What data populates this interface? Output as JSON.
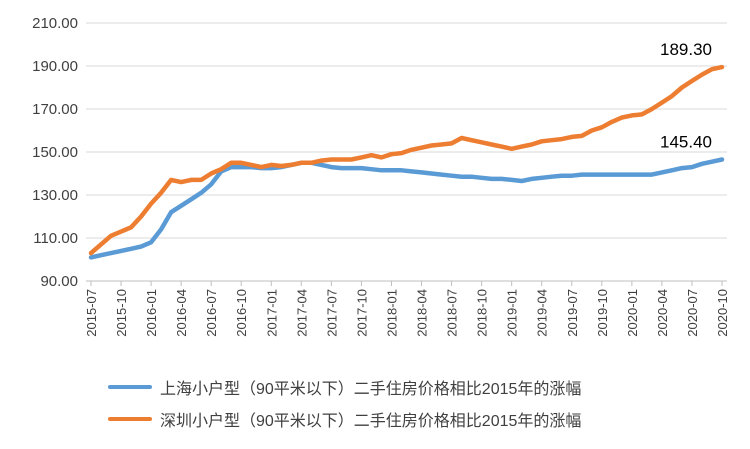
{
  "chart_data": {
    "type": "line",
    "x": [
      "2015-07",
      "2015-08",
      "2015-09",
      "2015-10",
      "2015-11",
      "2015-12",
      "2016-01",
      "2016-02",
      "2016-03",
      "2016-04",
      "2016-05",
      "2016-06",
      "2016-07",
      "2016-08",
      "2016-09",
      "2016-10",
      "2016-11",
      "2016-12",
      "2017-01",
      "2017-02",
      "2017-03",
      "2017-04",
      "2017-05",
      "2017-06",
      "2017-07",
      "2017-08",
      "2017-09",
      "2017-10",
      "2017-11",
      "2017-12",
      "2018-01",
      "2018-02",
      "2018-03",
      "2018-04",
      "2018-05",
      "2018-06",
      "2018-07",
      "2018-08",
      "2018-09",
      "2018-10",
      "2018-11",
      "2018-12",
      "2019-01",
      "2019-02",
      "2019-03",
      "2019-04",
      "2019-05",
      "2019-06",
      "2019-07",
      "2019-08",
      "2019-09",
      "2019-10",
      "2019-11",
      "2019-12",
      "2020-01",
      "2020-02",
      "2020-03",
      "2020-04",
      "2020-05",
      "2020-06",
      "2020-07",
      "2020-08",
      "2020-09",
      "2020-10"
    ],
    "x_tick_labels": [
      "2015-07",
      "2015-10",
      "2016-01",
      "2016-04",
      "2016-07",
      "2016-10",
      "2017-01",
      "2017-04",
      "2017-07",
      "2017-10",
      "2018-01",
      "2018-04",
      "2018-07",
      "2018-10",
      "2019-01",
      "2019-04",
      "2019-07",
      "2019-10",
      "2020-01",
      "2020-04",
      "2020-07",
      "2020-10"
    ],
    "y_tick_labels": [
      "90.00",
      "110.00",
      "130.00",
      "150.00",
      "170.00",
      "190.00",
      "210.00"
    ],
    "ylim": [
      90,
      210
    ],
    "grid": true,
    "legend_position": "bottom",
    "series": [
      {
        "name": "上海小户型（90平米以下）二手住房价格相比2015年的涨幅",
        "color": "#5B9BD5",
        "values": [
          101,
          102,
          103,
          104,
          105,
          106,
          108,
          114,
          122,
          125,
          128,
          131,
          135,
          141,
          143,
          143,
          143,
          142.5,
          142.5,
          143,
          144,
          145,
          145,
          144,
          143,
          142.5,
          142.5,
          142.5,
          142,
          141.5,
          141.5,
          141.5,
          141,
          140.5,
          140,
          139.5,
          139,
          138.5,
          138.5,
          138,
          137.5,
          137.5,
          137,
          136.5,
          137.5,
          138,
          138.5,
          139,
          139,
          139.5,
          139.5,
          139.5,
          139.5,
          139.5,
          139.5,
          139.5,
          139.5,
          140.5,
          141.5,
          142.5,
          143,
          144.5,
          145.5,
          146.5
        ],
        "end_label": "145.40"
      },
      {
        "name": "深圳小户型（90平米以下）二手住房价格相比2015年的涨幅",
        "color": "#ED7D31",
        "values": [
          103,
          107,
          111,
          113,
          115,
          120,
          126,
          131,
          137,
          136,
          137,
          137,
          140,
          142,
          145,
          145,
          144,
          143,
          144,
          143.5,
          144,
          145,
          145,
          146,
          146.5,
          146.5,
          146.5,
          147.5,
          148.5,
          147.5,
          149,
          149.5,
          151,
          152,
          153,
          153.5,
          154,
          156.5,
          155.5,
          154.5,
          153.5,
          152.5,
          151.5,
          152.5,
          153.5,
          155,
          155.5,
          156,
          157,
          157.5,
          160,
          161.5,
          164,
          166,
          167,
          167.5,
          170,
          173,
          176,
          180,
          183,
          186,
          188.5,
          189.5
        ],
        "end_label": "189.30"
      }
    ]
  }
}
